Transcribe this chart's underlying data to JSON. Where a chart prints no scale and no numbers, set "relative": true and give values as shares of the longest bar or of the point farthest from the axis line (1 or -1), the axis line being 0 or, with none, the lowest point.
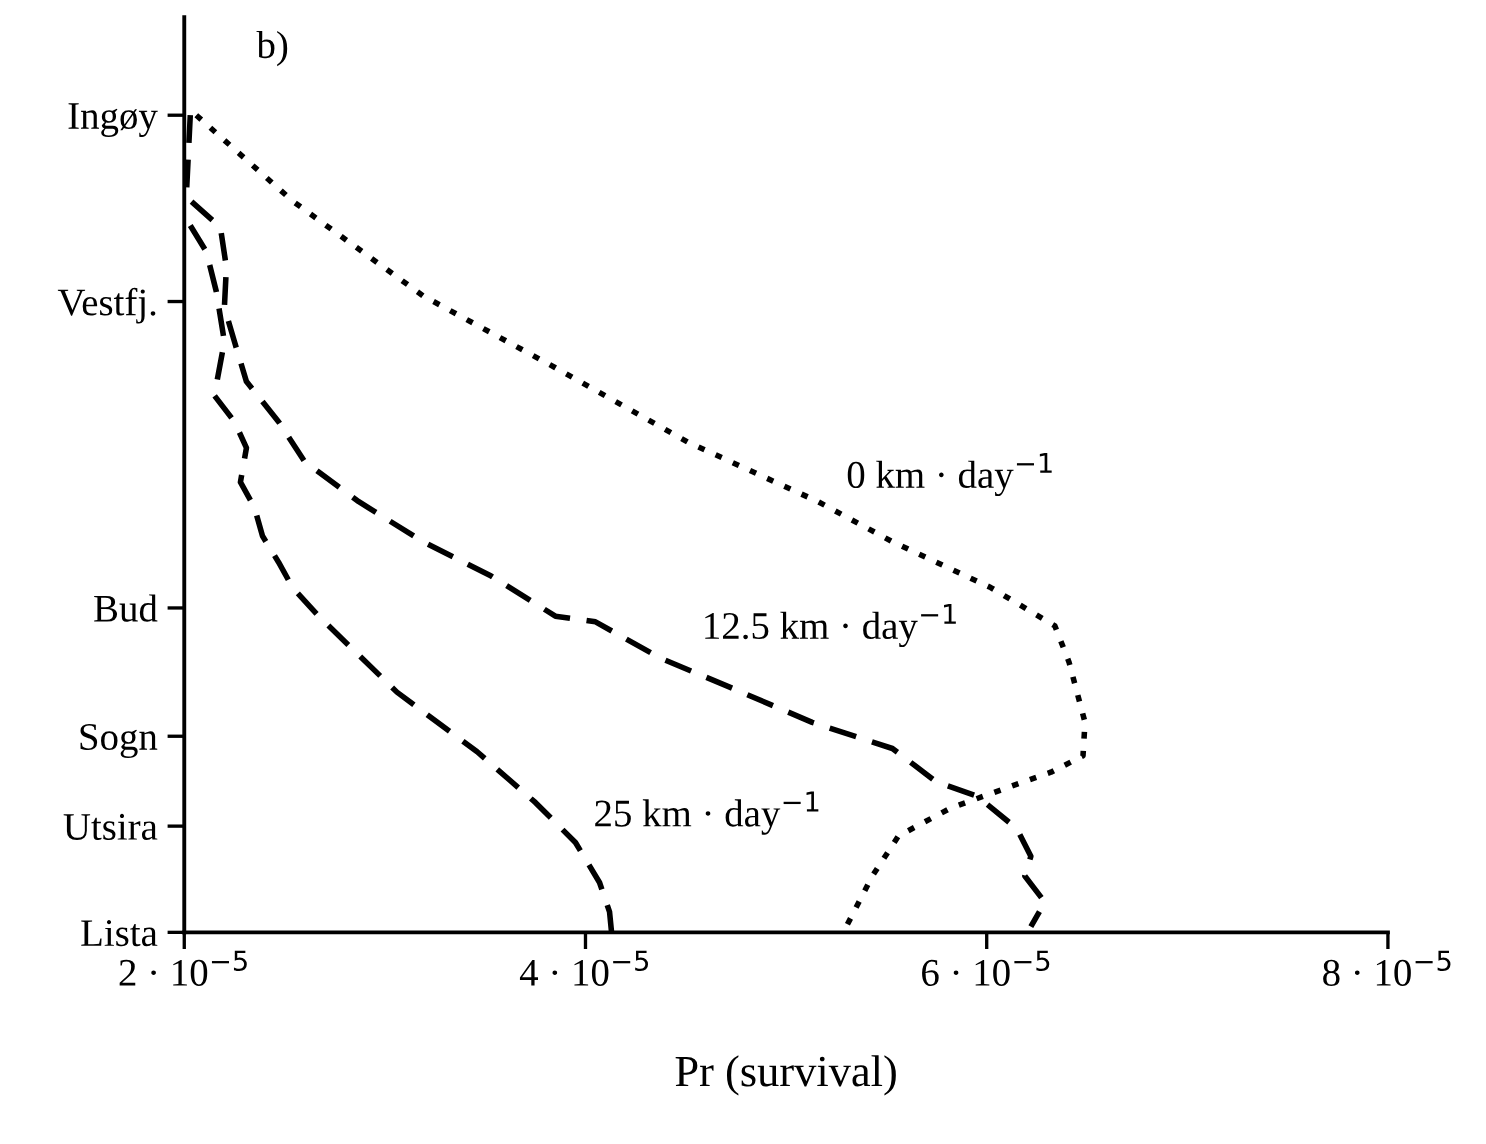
{
  "chart_data": {
    "type": "line",
    "xlabel": "Pr (survival)",
    "relative": true,
    "annotations": [
      "b)",
      "Lista",
      "Utsira",
      "Sogn",
      "Bud",
      "Vestfj.",
      "Ingøy"
    ],
    "xlim": [
      2e-05,
      8e-05
    ],
    "xticks": [
      {
        "value": 2e-05,
        "label": "2 · 10$^{−5}$"
      },
      {
        "value": 4e-05,
        "label": "4 · 10$^{−5}$"
      },
      {
        "value": 6e-05,
        "label": "6 · 10$^{−5}$"
      },
      {
        "value": 8e-05,
        "label": "8 · 10$^{−5}$"
      }
    ],
    "grid": false,
    "legend": false,
    "marker": "none",
    "series": [
      {
        "name": "0 km · day$^{−1}$",
        "color": "#000000",
        "line_style": "dotted",
        "x": [
          2.06e-05,
          2.54e-05,
          3.19e-05,
          3.85e-05,
          4.51e-05,
          5.16e-05,
          5.53e-05,
          6.02e-05,
          6.34e-05,
          6.41e-05,
          6.49e-05,
          6.48e-05,
          6.32e-05,
          6.09e-05,
          5.82e-05,
          5.56e-05,
          5.43e-05,
          5.3e-05
        ],
        "values": [
          1.0,
          0.895,
          0.779,
          0.691,
          0.6,
          0.527,
          0.478,
          0.422,
          0.375,
          0.331,
          0.257,
          0.216,
          0.196,
          0.176,
          0.152,
          0.118,
          0.069,
          0.007
        ]
      },
      {
        "name": "12.5 km · day$^{−1}$",
        "color": "#000000",
        "line_style": "dashed",
        "x": [
          2.03e-05,
          2.01e-05,
          2.18e-05,
          2.21e-05,
          2.2e-05,
          2.25e-05,
          2.31e-05,
          2.47e-05,
          2.6e-05,
          2.87e-05,
          3.19e-05,
          3.53e-05,
          3.85e-05,
          4.05e-05,
          4.37e-05,
          4.71e-05,
          5.13e-05,
          5.53e-05,
          5.75e-05,
          5.95e-05,
          6.15e-05,
          6.22e-05,
          6.19e-05,
          6.29e-05,
          6.22e-05
        ],
        "values": [
          1.0,
          0.9,
          0.863,
          0.814,
          0.765,
          0.723,
          0.674,
          0.625,
          0.576,
          0.527,
          0.478,
          0.436,
          0.387,
          0.38,
          0.336,
          0.301,
          0.257,
          0.225,
          0.184,
          0.167,
          0.127,
          0.093,
          0.069,
          0.037,
          0.007
        ]
      },
      {
        "name": "25 km · day$^{−1}$",
        "color": "#000000",
        "line_style": "dashed",
        "x": [
          2.03e-05,
          2.11e-05,
          2.16e-05,
          2.2e-05,
          2.15e-05,
          2.25e-05,
          2.31e-05,
          2.28e-05,
          2.35e-05,
          2.39e-05,
          2.47e-05,
          2.54e-05,
          2.67e-05,
          3.06e-05,
          3.46e-05,
          3.75e-05,
          3.95e-05,
          4.07e-05,
          4.12e-05,
          4.13e-05
        ],
        "values": [
          0.865,
          0.833,
          0.784,
          0.723,
          0.657,
          0.625,
          0.593,
          0.551,
          0.52,
          0.485,
          0.453,
          0.422,
          0.387,
          0.294,
          0.221,
          0.159,
          0.11,
          0.061,
          0.025,
          0.0
        ]
      }
    ]
  }
}
